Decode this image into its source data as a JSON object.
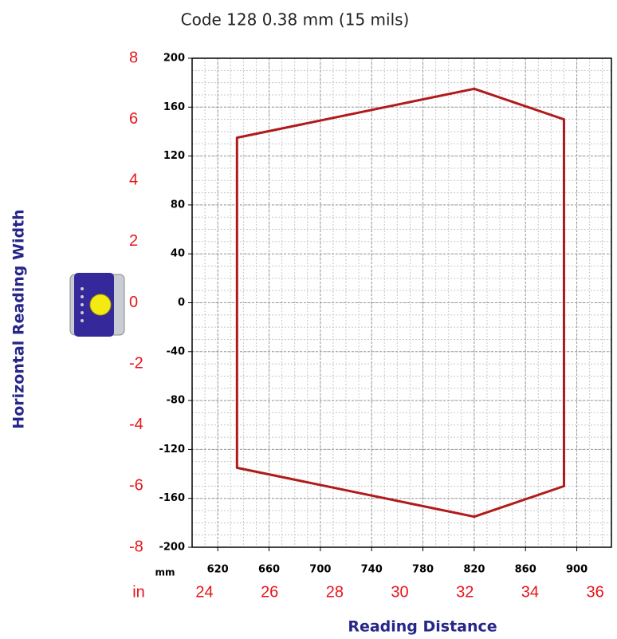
{
  "chart_data": {
    "type": "line",
    "title": "Code 128 0.38 mm (15 mils)",
    "x_label": "Reading Distance",
    "y_label": "Horizontal Reading Width",
    "x_unit": "mm",
    "x2_unit": "in",
    "closed": true,
    "grid": true,
    "series": [
      {
        "color": "#b01a1a",
        "x": [
          635,
          820,
          890,
          890,
          820,
          635
        ],
        "values": [
          135,
          175,
          150,
          -150,
          -175,
          -135
        ]
      }
    ],
    "xlim": [
      600,
      927
    ],
    "xticks": [
      620,
      660,
      700,
      740,
      780,
      820,
      860,
      900
    ],
    "ylim": [
      -200,
      200
    ],
    "yticks": [
      200,
      160,
      120,
      80,
      40,
      0,
      -40,
      -80,
      -120,
      -160,
      -200
    ],
    "x2lim": [
      23.62,
      36.5
    ],
    "x2ticks": [
      24,
      26,
      28,
      30,
      32,
      34,
      36
    ],
    "y2lim": [
      -8,
      8
    ],
    "y2ticks": [
      8,
      6,
      4,
      2,
      0,
      -2,
      -4,
      -6,
      -8
    ]
  }
}
